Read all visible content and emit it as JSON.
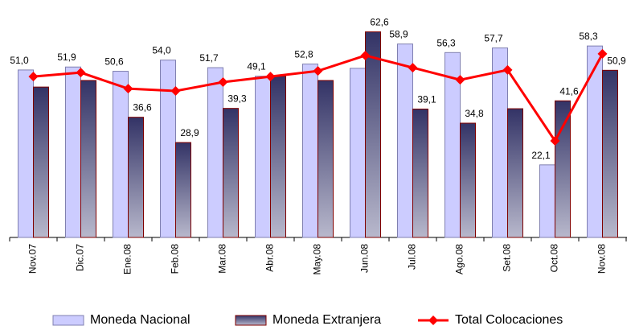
{
  "chart_data": {
    "type": "bar_line",
    "categories": [
      "Nov.07",
      "Dic.07",
      "Ene.08",
      "Feb.08",
      "Mar.08",
      "Abr.08",
      "May.08",
      "Jun.08",
      "Jul.08",
      "Ago.08",
      "Set.08",
      "Oct.08",
      "Nov.08"
    ],
    "series": [
      {
        "name": "Moneda Nacional",
        "type": "bar",
        "color": "#ccccff",
        "values": [
          51.0,
          51.9,
          50.6,
          54.0,
          51.7,
          49.1,
          52.8,
          51.5,
          58.9,
          56.3,
          57.7,
          22.1,
          58.3
        ],
        "value_labels": [
          "51,0",
          "51,9",
          "50,6",
          "54,0",
          "51,7",
          "49,1",
          "52,8",
          null,
          "58,9",
          "56,3",
          "57,7",
          "22,1",
          "58,3"
        ]
      },
      {
        "name": "Moneda Extranjera",
        "type": "bar",
        "color": "#333366",
        "values": [
          45.8,
          47.8,
          36.6,
          28.9,
          39.3,
          49.1,
          47.8,
          62.6,
          39.1,
          34.8,
          39.2,
          41.6,
          50.9
        ],
        "value_labels": [
          null,
          null,
          "36,6",
          "28,9",
          "39,3",
          null,
          null,
          "62,6",
          "39,1",
          "34,8",
          null,
          "41,6",
          "50,9"
        ]
      },
      {
        "name": "Total Colocaciones",
        "type": "line",
        "color": "#ff0000",
        "values": [
          49.0,
          50.2,
          45.3,
          44.6,
          47.3,
          49.0,
          50.7,
          55.4,
          51.7,
          48.0,
          51.0,
          29.4,
          55.9
        ]
      }
    ]
  }
}
